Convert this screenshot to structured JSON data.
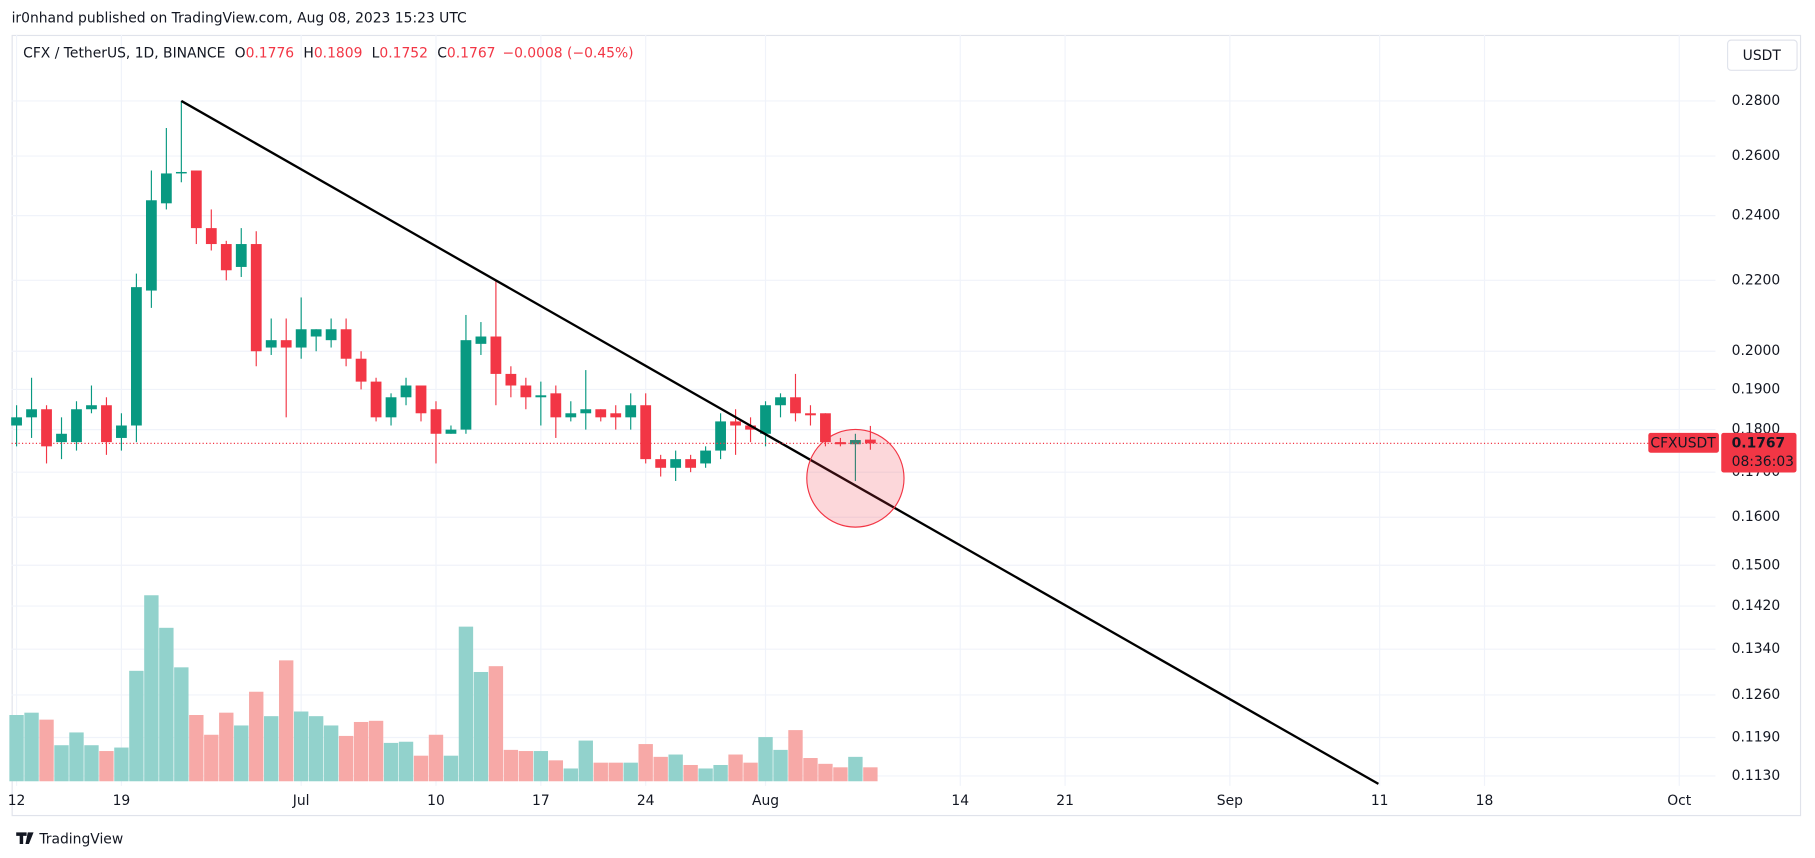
{
  "header": {
    "published": "ir0nhand published on TradingView.com, Aug 08, 2023 15:23 UTC"
  },
  "footer": {
    "brand": "TradingView"
  },
  "chart_data": {
    "type": "candlestick",
    "symbol": "CFX / TetherUS, 1D, BINANCE",
    "ohlc_legend": {
      "o_label": "O",
      "open": 0.1776,
      "h_label": "H",
      "high": 0.1809,
      "l_label": "L",
      "low": 0.1752,
      "c_label": "C",
      "close": 0.1767,
      "change": "−0.0008 (−0.45%)"
    },
    "currency": "USDT",
    "price_tag": {
      "symbol": "CFXUSDT",
      "price": 0.1767,
      "countdown": "08:36:03"
    },
    "log_scale": true,
    "grid": true,
    "up_color": "#089981",
    "down_color": "#f23645",
    "up_volume_color": "#92d2cc",
    "down_volume_color": "#f7a9a7",
    "x": [
      "2023-06-12",
      "2023-06-13",
      "2023-06-14",
      "2023-06-15",
      "2023-06-16",
      "2023-06-17",
      "2023-06-18",
      "2023-06-19",
      "2023-06-20",
      "2023-06-21",
      "2023-06-22",
      "2023-06-23",
      "2023-06-24",
      "2023-06-25",
      "2023-06-26",
      "2023-06-27",
      "2023-06-28",
      "2023-06-29",
      "2023-06-30",
      "2023-07-01",
      "2023-07-02",
      "2023-07-03",
      "2023-07-04",
      "2023-07-05",
      "2023-07-06",
      "2023-07-07",
      "2023-07-08",
      "2023-07-09",
      "2023-07-10",
      "2023-07-11",
      "2023-07-12",
      "2023-07-13",
      "2023-07-14",
      "2023-07-15",
      "2023-07-16",
      "2023-07-17",
      "2023-07-18",
      "2023-07-19",
      "2023-07-20",
      "2023-07-21",
      "2023-07-22",
      "2023-07-23",
      "2023-07-24",
      "2023-07-25",
      "2023-07-26",
      "2023-07-27",
      "2023-07-28",
      "2023-07-29",
      "2023-07-30",
      "2023-07-31",
      "2023-08-01",
      "2023-08-02",
      "2023-08-03",
      "2023-08-04",
      "2023-08-05",
      "2023-08-06",
      "2023-08-07",
      "2023-08-08"
    ],
    "open": [
      0.181,
      0.183,
      0.185,
      0.177,
      0.177,
      0.185,
      0.186,
      0.178,
      0.181,
      0.217,
      0.244,
      0.254,
      0.255,
      0.236,
      0.231,
      0.224,
      0.231,
      0.201,
      0.203,
      0.201,
      0.204,
      0.203,
      0.206,
      0.198,
      0.192,
      0.183,
      0.188,
      0.191,
      0.185,
      0.179,
      0.18,
      0.202,
      0.204,
      0.194,
      0.191,
      0.188,
      0.189,
      0.183,
      0.184,
      0.185,
      0.184,
      0.183,
      0.186,
      0.173,
      0.171,
      0.173,
      0.172,
      0.175,
      0.182,
      0.181,
      0.179,
      0.186,
      0.188,
      0.184,
      0.184,
      0.177,
      0.1765,
      0.1776
    ],
    "high": [
      0.186,
      0.193,
      0.186,
      0.183,
      0.187,
      0.191,
      0.188,
      0.184,
      0.222,
      0.255,
      0.27,
      0.28,
      0.255,
      0.242,
      0.232,
      0.236,
      0.235,
      0.209,
      0.209,
      0.215,
      0.206,
      0.209,
      0.209,
      0.2,
      0.193,
      0.189,
      0.193,
      0.191,
      0.187,
      0.181,
      0.21,
      0.208,
      0.22,
      0.196,
      0.193,
      0.192,
      0.191,
      0.187,
      0.195,
      0.185,
      0.186,
      0.189,
      0.189,
      0.174,
      0.175,
      0.174,
      0.176,
      0.184,
      0.185,
      0.183,
      0.187,
      0.189,
      0.194,
      0.186,
      0.184,
      0.178,
      0.179,
      0.1809
    ],
    "low": [
      0.176,
      0.178,
      0.172,
      0.173,
      0.175,
      0.184,
      0.174,
      0.175,
      0.177,
      0.212,
      0.242,
      0.251,
      0.231,
      0.229,
      0.22,
      0.221,
      0.196,
      0.199,
      0.183,
      0.198,
      0.2,
      0.201,
      0.196,
      0.19,
      0.182,
      0.181,
      0.186,
      0.182,
      0.172,
      0.179,
      0.179,
      0.199,
      0.186,
      0.188,
      0.185,
      0.181,
      0.178,
      0.182,
      0.18,
      0.182,
      0.18,
      0.18,
      0.172,
      0.169,
      0.168,
      0.17,
      0.171,
      0.173,
      0.174,
      0.177,
      0.176,
      0.183,
      0.182,
      0.181,
      0.176,
      0.176,
      0.168,
      0.1752
    ],
    "close": [
      0.183,
      0.185,
      0.176,
      0.179,
      0.185,
      0.186,
      0.177,
      0.181,
      0.218,
      0.245,
      0.254,
      0.2545,
      0.236,
      0.231,
      0.223,
      0.231,
      0.2,
      0.203,
      0.201,
      0.206,
      0.206,
      0.206,
      0.198,
      0.192,
      0.183,
      0.188,
      0.191,
      0.184,
      0.179,
      0.18,
      0.203,
      0.204,
      0.194,
      0.191,
      0.188,
      0.1885,
      0.183,
      0.184,
      0.185,
      0.183,
      0.183,
      0.186,
      0.173,
      0.171,
      0.173,
      0.171,
      0.175,
      0.182,
      0.181,
      0.18,
      0.186,
      0.188,
      0.184,
      0.1835,
      0.177,
      0.1765,
      0.1775,
      0.1767
    ],
    "volume": [
      57,
      59,
      53,
      31,
      42,
      31,
      26,
      29,
      95,
      160,
      132,
      98,
      57,
      40,
      59,
      48,
      77,
      56,
      104,
      60,
      56,
      48,
      39,
      51,
      52,
      33,
      34,
      22,
      40,
      22,
      133,
      94,
      99,
      27,
      26,
      26,
      18,
      11,
      35,
      16,
      16,
      16,
      32,
      21,
      23,
      14,
      11,
      14,
      23,
      16,
      38,
      27,
      44,
      20,
      15,
      12,
      21,
      12
    ],
    "xlim": [
      "2023-06-11T16:00Z",
      "2023-10-03T10:00Z"
    ],
    "xticks": [
      {
        "value": "2023-06-12",
        "label": "12"
      },
      {
        "value": "2023-06-19",
        "label": "19"
      },
      {
        "value": "2023-07-01",
        "label": "Jul"
      },
      {
        "value": "2023-07-10",
        "label": "10"
      },
      {
        "value": "2023-07-17",
        "label": "17"
      },
      {
        "value": "2023-07-24",
        "label": "24"
      },
      {
        "value": "2023-08-01",
        "label": "Aug"
      },
      {
        "value": "2023-08-14",
        "label": "14"
      },
      {
        "value": "2023-08-21",
        "label": "21"
      },
      {
        "value": "2023-09-01",
        "label": "Sep"
      },
      {
        "value": "2023-09-11",
        "label": "11"
      },
      {
        "value": "2023-09-18",
        "label": "18"
      },
      {
        "value": "2023-10-01",
        "label": "Oct"
      }
    ],
    "ylim": [
      0.1115,
      0.306
    ],
    "yticks": [
      {
        "value": 0.28,
        "label": "0.2800"
      },
      {
        "value": 0.26,
        "label": "0.2600"
      },
      {
        "value": 0.24,
        "label": "0.2400"
      },
      {
        "value": 0.22,
        "label": "0.2200"
      },
      {
        "value": 0.2,
        "label": "0.2000"
      },
      {
        "value": 0.19,
        "label": "0.1900"
      },
      {
        "value": 0.18,
        "label": "0.1800"
      },
      {
        "value": 0.17,
        "label": "0.1700"
      },
      {
        "value": 0.16,
        "label": "0.1600"
      },
      {
        "value": 0.15,
        "label": "0.1500"
      },
      {
        "value": 0.142,
        "label": "0.1420"
      },
      {
        "value": 0.134,
        "label": "0.1340"
      },
      {
        "value": 0.126,
        "label": "0.1260"
      },
      {
        "value": 0.119,
        "label": "0.1190"
      },
      {
        "value": 0.113,
        "label": "0.1130"
      }
    ],
    "trendline": {
      "x": [
        "2023-06-23",
        "2023-09-10T22:00Z"
      ],
      "y": [
        0.28,
        0.1118
      ]
    },
    "circle": {
      "x": "2023-08-07",
      "y": 0.1686
    }
  }
}
